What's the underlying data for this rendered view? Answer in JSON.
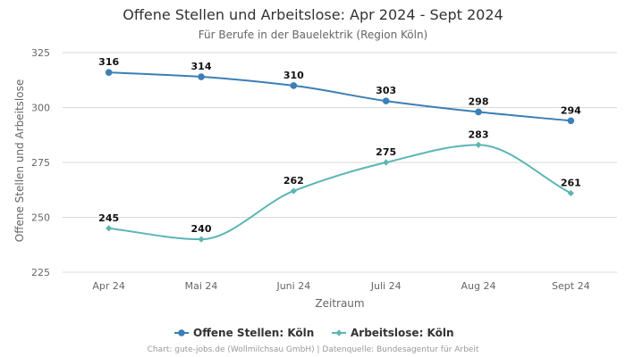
{
  "chart_data": {
    "type": "line",
    "title": "Offene Stellen und Arbeitslose: Apr 2024 - Sept 2024",
    "subtitle": "Für Berufe in der Bauelektrik (Region Köln)",
    "xlabel": "Zeitraum",
    "ylabel": "Offene Stellen und Arbeitslose",
    "categories": [
      "Apr 24",
      "Mai 24",
      "Juni 24",
      "Juli 24",
      "Aug 24",
      "Sept 24"
    ],
    "ylim": [
      225,
      325
    ],
    "yticks": [
      225,
      250,
      275,
      300,
      325
    ],
    "grid": true,
    "legend_position": "bottom",
    "series": [
      {
        "name": "Offene Stellen: Köln",
        "color": "#3b7fb5",
        "marker": "circle",
        "values": [
          316,
          314,
          310,
          303,
          298,
          294
        ]
      },
      {
        "name": "Arbeitslose: Köln",
        "color": "#5cb5b5",
        "marker": "diamond",
        "values": [
          245,
          240,
          262,
          275,
          283,
          261
        ]
      }
    ]
  },
  "footer": "Chart: gute-jobs.de (Wollmilchsau GmbH) | Datenquelle: Bundesagentur für Arbeit"
}
